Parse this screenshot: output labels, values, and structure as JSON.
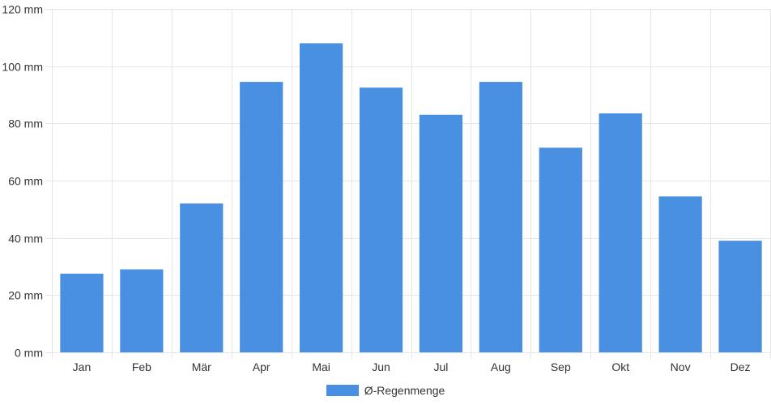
{
  "chart_data": {
    "type": "bar",
    "categories": [
      "Jan",
      "Feb",
      "Mär",
      "Apr",
      "Mai",
      "Jun",
      "Jul",
      "Aug",
      "Sep",
      "Okt",
      "Nov",
      "Dez"
    ],
    "series": [
      {
        "name": "Ø-Regenmenge",
        "values": [
          27.5,
          29,
          52,
          94.5,
          108,
          92.5,
          83,
          94.5,
          71.5,
          83.5,
          54.5,
          39
        ]
      }
    ],
    "y_ticks": [
      "0 mm",
      "20 mm",
      "40 mm",
      "60 mm",
      "80 mm",
      "100 mm",
      "120 mm"
    ],
    "ylim": [
      0,
      120
    ],
    "grid": true,
    "legend_position": "bottom",
    "colors": {
      "bar": "#4a90e2",
      "grid": "#e6e6e6",
      "text": "#333333"
    }
  }
}
